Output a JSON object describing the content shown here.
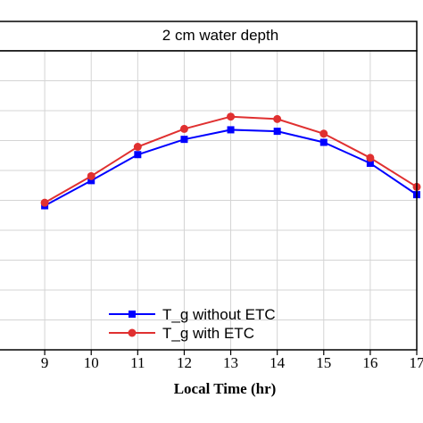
{
  "chart_data": {
    "type": "line",
    "title": "2 cm water depth",
    "xlabel": "Local Time (hr)",
    "ylabel": "",
    "x": [
      9,
      10,
      11,
      12,
      13,
      14,
      15,
      16,
      17
    ],
    "xlim": [
      8,
      17
    ],
    "ylim": [
      0,
      100
    ],
    "grid": true,
    "legend_position": "bottom-center",
    "series": [
      {
        "name": "T_g without ETC",
        "color": "#0000ff",
        "marker": "square",
        "values": [
          48.2,
          56.6,
          65.3,
          70.4,
          73.6,
          73.1,
          69.4,
          62.4,
          51.9
        ]
      },
      {
        "name": "T_g with ETC",
        "color": "#e03030",
        "marker": "circle",
        "values": [
          49.2,
          58.1,
          67.9,
          73.9,
          78.0,
          77.2,
          72.3,
          64.2,
          54.5
        ]
      }
    ]
  }
}
